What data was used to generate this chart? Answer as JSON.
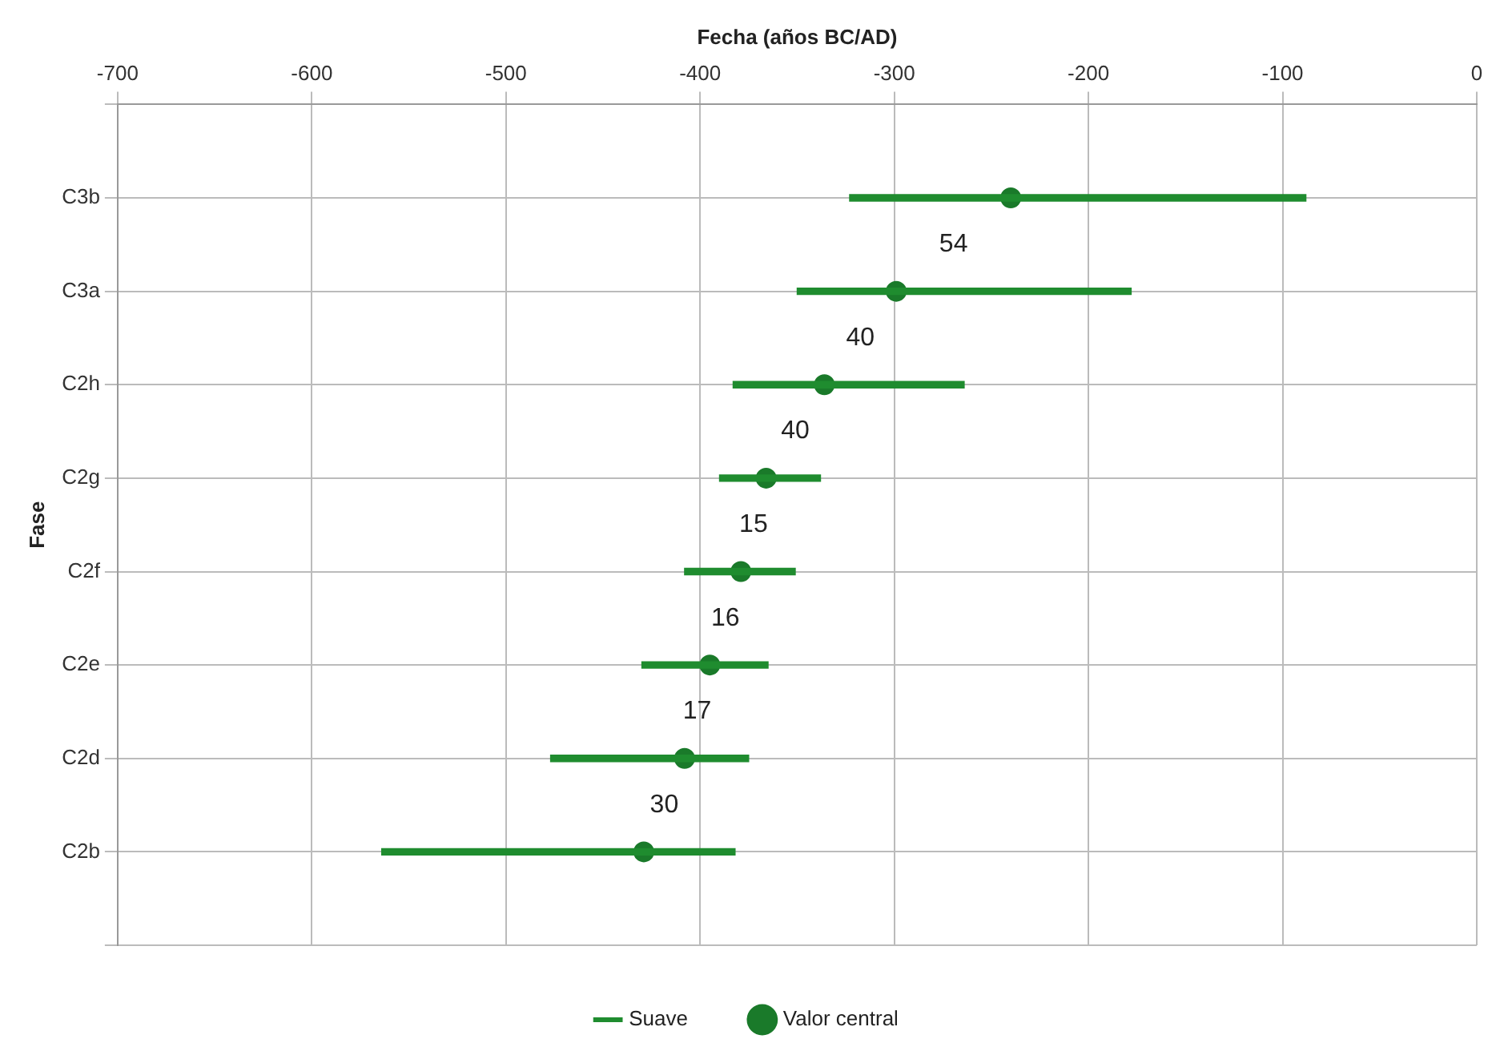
{
  "chart_data": {
    "type": "bar",
    "orientation": "horizontal",
    "xlabel": "Fecha (años BC/AD)",
    "ylabel": "Fase",
    "categories": [
      null,
      "C3b",
      "C3a",
      "C2h",
      "C2g",
      "C2f",
      "C2e",
      "C2d",
      "C2b",
      null
    ],
    "series": [
      {
        "name": "Suave",
        "color": "#1f8c2f",
        "base": [
          null,
          -323,
          -350,
          -383,
          -390,
          -408,
          -430,
          -477,
          -564,
          null
        ],
        "values": [
          null,
          235,
          172,
          119,
          52,
          57,
          65,
          102,
          182,
          null
        ]
      },
      {
        "name": "Valor central",
        "type": "scatter",
        "color": "#1a7a2a",
        "marker": "circle",
        "values": [
          null,
          -240,
          -299,
          -336,
          -366,
          -379,
          -395,
          -408,
          -429,
          null
        ]
      }
    ],
    "xlim": [
      -700,
      0
    ],
    "xticks": [
      -700,
      -600,
      -500,
      -400,
      -300,
      -200,
      -100,
      0
    ],
    "annotations": [
      "54",
      "40",
      "40",
      "15",
      "16",
      "17",
      "30"
    ],
    "grid": true,
    "legend": "bottom"
  }
}
